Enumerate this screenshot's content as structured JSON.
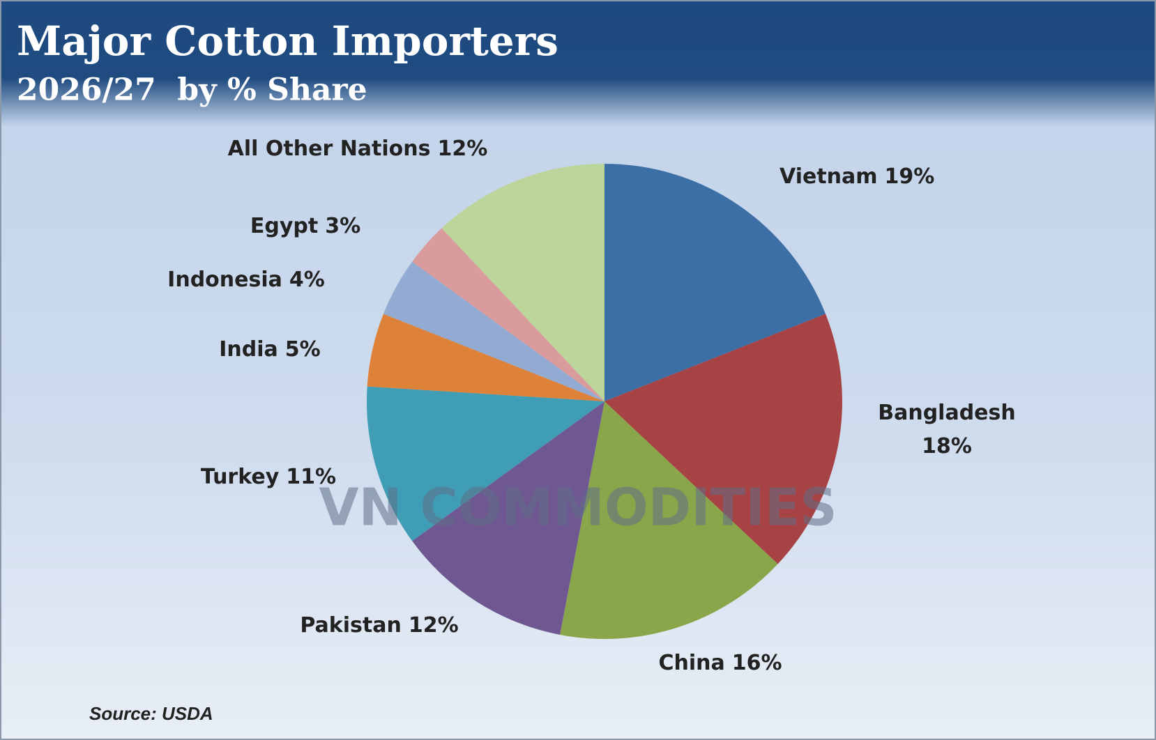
{
  "chart_data": {
    "type": "pie",
    "title": "Major Cotton Importers",
    "subtitle": "2026/27  by % Share",
    "categories": [
      "Vietnam",
      "Bangladesh",
      "China",
      "Pakistan",
      "Turkey",
      "India",
      "Indonesia",
      "Egypt",
      "All Other Nations"
    ],
    "values": [
      19,
      18,
      16,
      12,
      11,
      5,
      4,
      3,
      12
    ],
    "value_labels": [
      "19%",
      "18%",
      "16%",
      "12%",
      "11%",
      "5%",
      "4%",
      "3%",
      "12%"
    ],
    "colors": [
      "#3d6fa7",
      "#a84345",
      "#8aa64b",
      "#6f5892",
      "#3f9db5",
      "#de823a",
      "#93aad3",
      "#d99b9b",
      "#bcd59a"
    ],
    "watermark": "VN COMMODITIES",
    "source": "Source: USDA"
  }
}
